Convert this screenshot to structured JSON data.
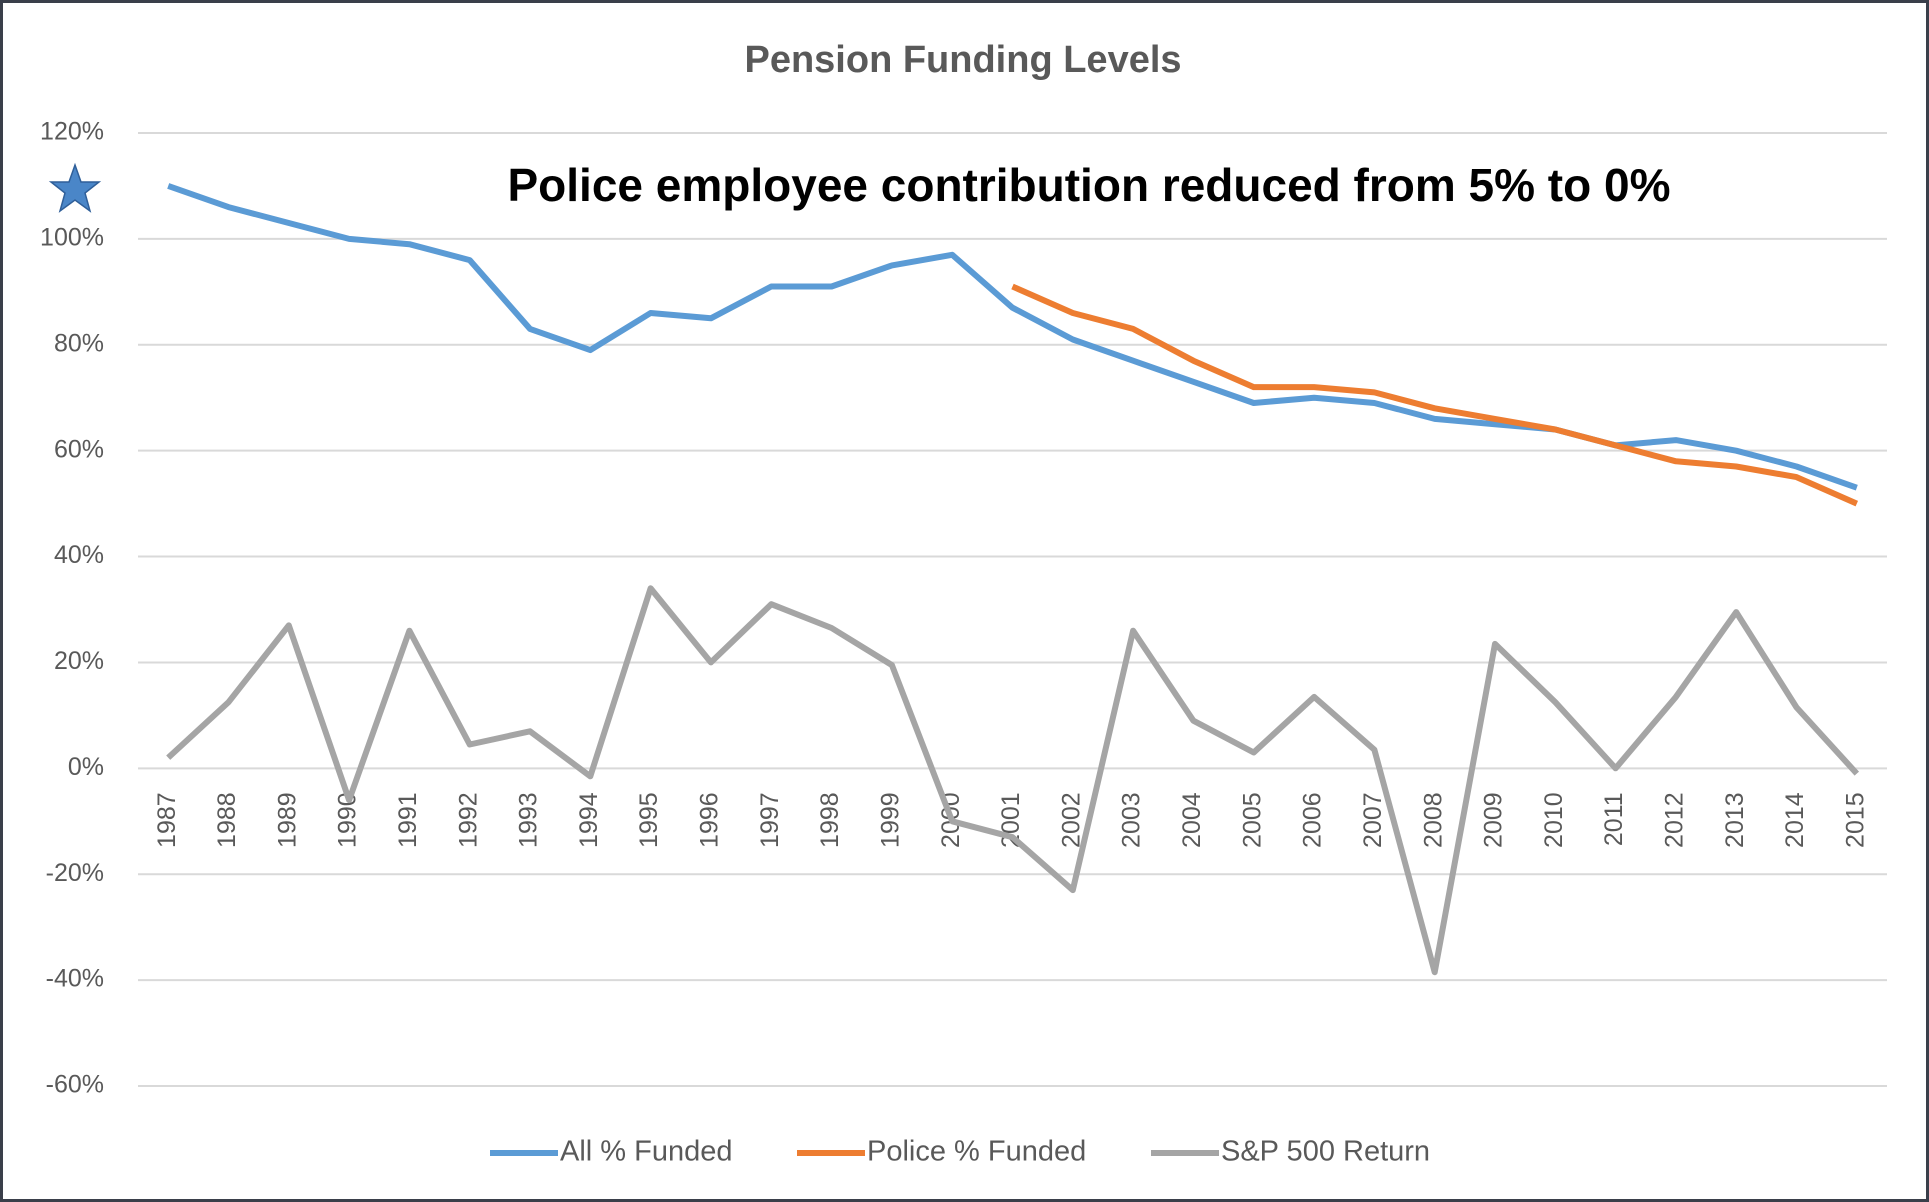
{
  "chart_data": {
    "type": "line",
    "title": "Pension Funding Levels",
    "annotation": "Police employee contribution reduced from 5% to 0%",
    "categories": [
      "1987",
      "1988",
      "1989",
      "1990",
      "1991",
      "1992",
      "1993",
      "1994",
      "1995",
      "1996",
      "1997",
      "1998",
      "1999",
      "2000",
      "2001",
      "2002",
      "2003",
      "2004",
      "2005",
      "2006",
      "2007",
      "2008",
      "2009",
      "2010",
      "2011",
      "2012",
      "2013",
      "2014",
      "2015"
    ],
    "series": [
      {
        "name": "All % Funded",
        "color": "#5b9bd5",
        "values": [
          110,
          106,
          103,
          100,
          99,
          96,
          83,
          79,
          86,
          85,
          91,
          91,
          95,
          97,
          87,
          81,
          77,
          73,
          69,
          70,
          69,
          66,
          65,
          64,
          61,
          62,
          60,
          57,
          53
        ]
      },
      {
        "name": "Police % Funded",
        "color": "#ed7d31",
        "values": [
          null,
          null,
          null,
          null,
          null,
          null,
          null,
          null,
          null,
          null,
          null,
          null,
          null,
          null,
          91,
          86,
          83,
          77,
          72,
          72,
          71,
          68,
          66,
          64,
          61,
          58,
          57,
          55,
          50
        ]
      },
      {
        "name": "S&P 500 Return",
        "color": "#a5a5a5",
        "values": [
          2,
          12.5,
          27,
          -6,
          26,
          4.5,
          7,
          -1.5,
          34,
          20,
          31,
          26.5,
          19.5,
          -10,
          -13,
          -23,
          26,
          9,
          3,
          13.5,
          3.5,
          -38.5,
          23.5,
          12.5,
          0,
          13.5,
          29.5,
          11.5,
          -1
        ]
      }
    ],
    "ylim": [
      -60,
      120
    ],
    "yticks": [
      {
        "value": -60,
        "label": "-60%"
      },
      {
        "value": -40,
        "label": "-40%"
      },
      {
        "value": -20,
        "label": "-20%"
      },
      {
        "value": 0,
        "label": "0%"
      },
      {
        "value": 20,
        "label": "20%"
      },
      {
        "value": 40,
        "label": "40%"
      },
      {
        "value": 60,
        "label": "60%"
      },
      {
        "value": 80,
        "label": "80%"
      },
      {
        "value": 100,
        "label": "100%"
      },
      {
        "value": 120,
        "label": "120%"
      }
    ],
    "grid": true,
    "legend": "bottom"
  }
}
